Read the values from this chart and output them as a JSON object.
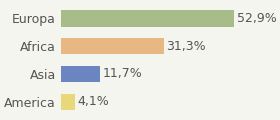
{
  "categories": [
    "Europa",
    "Africa",
    "Asia",
    "America"
  ],
  "values": [
    52.9,
    31.3,
    11.7,
    4.1
  ],
  "labels": [
    "52,9%",
    "31,3%",
    "11,7%",
    "4,1%"
  ],
  "bar_colors": [
    "#a8bc8a",
    "#e8b882",
    "#6a85c0",
    "#e8d87a"
  ],
  "background_color": "#f5f5f0",
  "xlim": [
    0,
    65
  ],
  "bar_height": 0.6,
  "label_fontsize": 9,
  "category_fontsize": 9,
  "text_color": "#555555"
}
